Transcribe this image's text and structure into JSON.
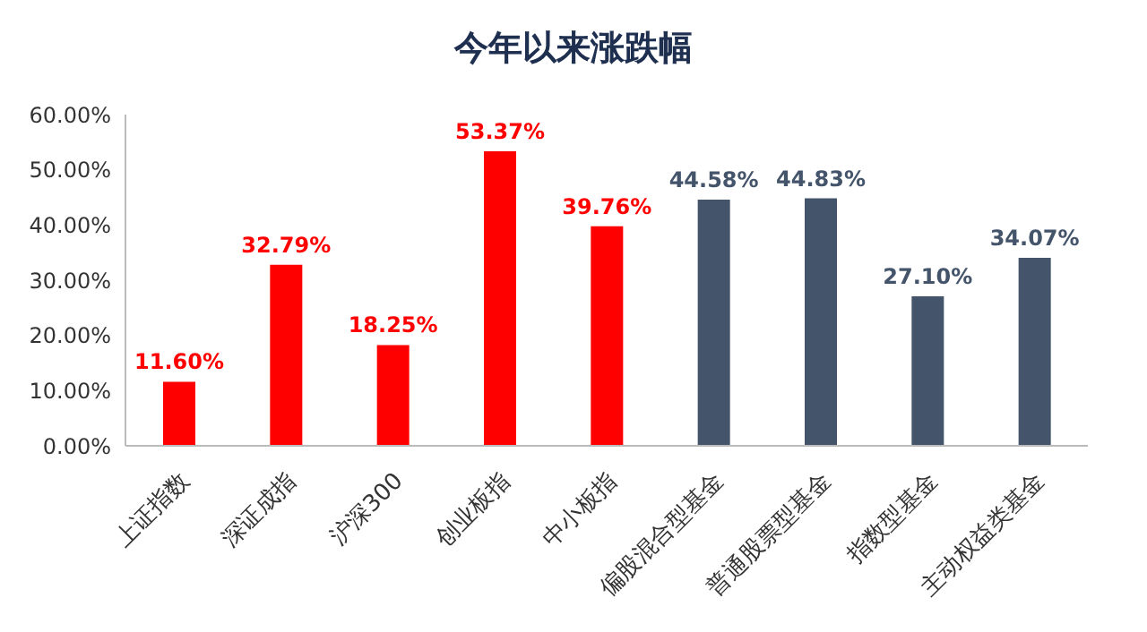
{
  "chart_data": {
    "type": "bar",
    "title": "今年以来涨跌幅",
    "categories": [
      "上证指数",
      "深证成指",
      "沪深300",
      "创业板指",
      "中小板指",
      "偏股混合型基金",
      "普通股票型基金",
      "指数型基金",
      "主动权益类基金"
    ],
    "values": [
      11.6,
      32.79,
      18.25,
      53.37,
      39.76,
      44.58,
      44.83,
      27.1,
      34.07
    ],
    "colors": [
      "#ff0000",
      "#ff0000",
      "#ff0000",
      "#ff0000",
      "#ff0000",
      "#44546a",
      "#44546a",
      "#44546a",
      "#44546a"
    ],
    "value_labels": [
      "11.60%",
      "32.79%",
      "18.25%",
      "53.37%",
      "39.76%",
      "44.58%",
      "44.83%",
      "27.10%",
      "34.07%"
    ],
    "ylim": [
      0,
      60
    ],
    "yticks": [
      {
        "value": 0,
        "label": "0.00%"
      },
      {
        "value": 10,
        "label": "10.00%"
      },
      {
        "value": 20,
        "label": "20.00%"
      },
      {
        "value": 30,
        "label": "30.00%"
      },
      {
        "value": 40,
        "label": "40.00%"
      },
      {
        "value": 50,
        "label": "50.00%"
      },
      {
        "value": 60,
        "label": "60.00%"
      }
    ],
    "grid": false,
    "legend": false
  }
}
